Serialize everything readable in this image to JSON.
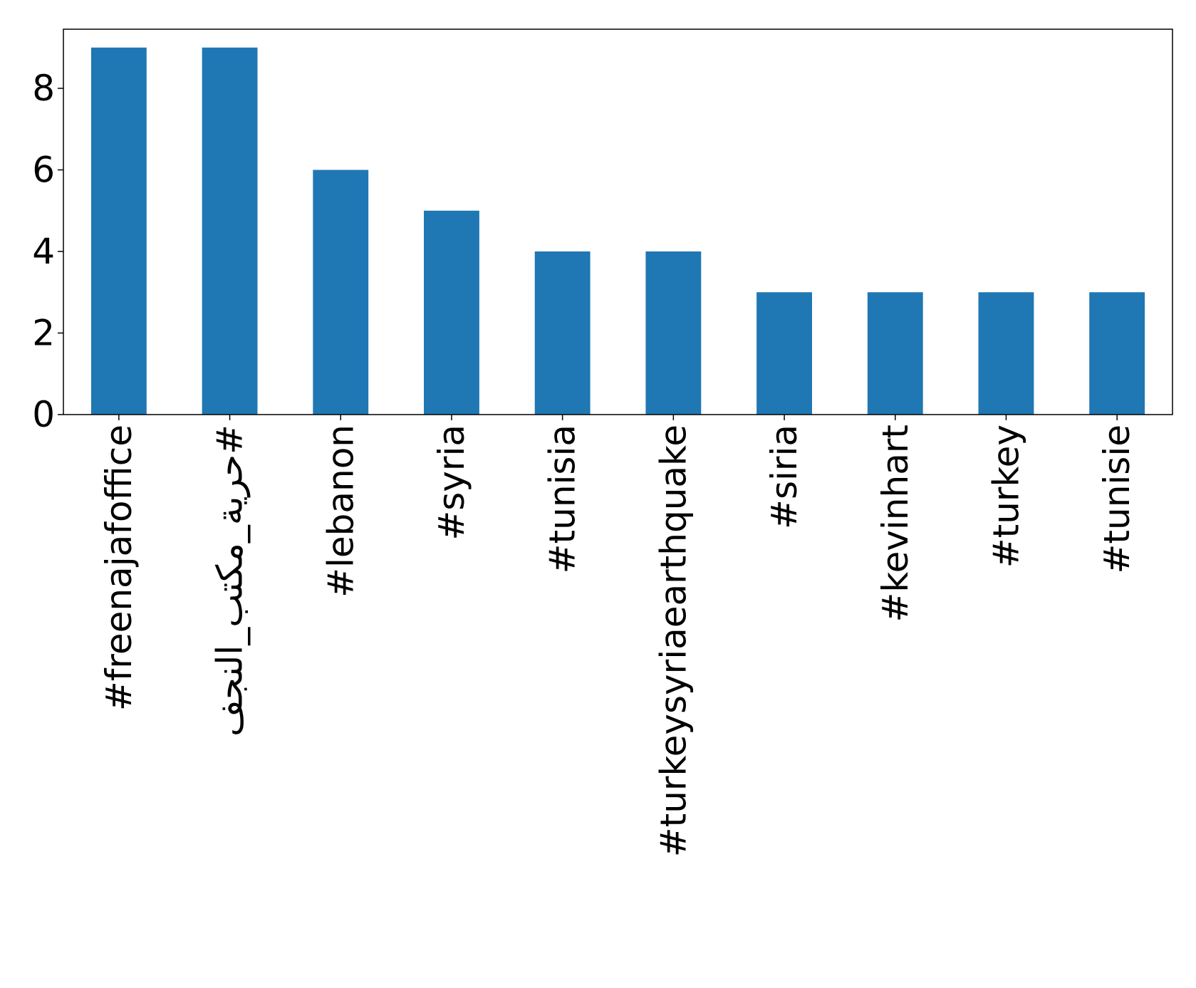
{
  "chart_data": {
    "type": "bar",
    "categories": [
      "#freenajafoffice",
      "#حرية_مكتب_النجف",
      "#lebanon",
      "#syria",
      "#tunisia",
      "#turkeysyriaearthquake",
      "#siria",
      "#kevinhart",
      "#turkey",
      "#tunisie"
    ],
    "values": [
      9,
      9,
      6,
      5,
      4,
      4,
      3,
      3,
      3,
      3
    ],
    "color": "#1f77b4",
    "ylim": [
      0,
      9.45
    ],
    "yticks": [
      0,
      2,
      4,
      6,
      8
    ],
    "grid": false
  }
}
